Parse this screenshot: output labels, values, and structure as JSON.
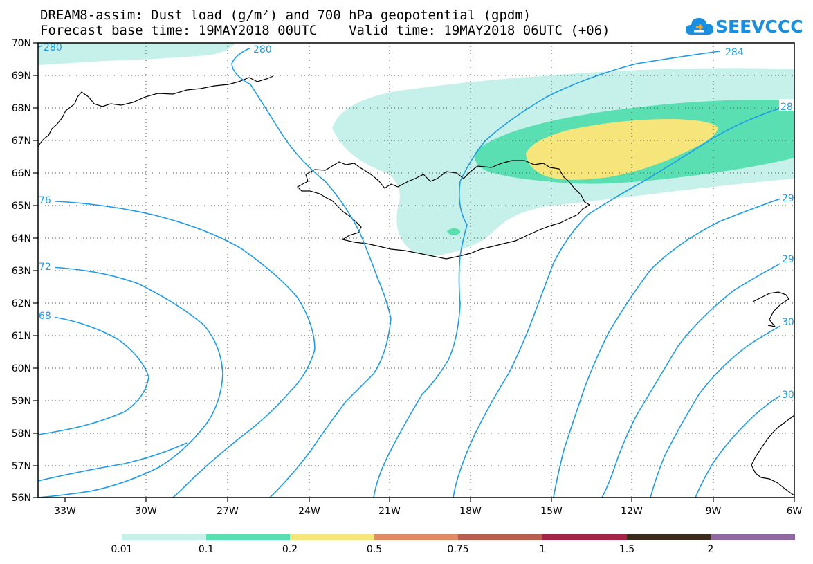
{
  "header": {
    "title_line1": "DREAM8-assim: Dust load (g/m²) and 700 hPa geopotential (gpdm)",
    "title_line2": "Forecast base time: 19MAY2018 00UTC    Valid time: 19MAY2018 06UTC (+06)",
    "logo_text": "SEEVCCC",
    "logo_icon": "cloud-icon"
  },
  "map": {
    "lat_labels": [
      "70N",
      "69N",
      "68N",
      "67N",
      "66N",
      "65N",
      "64N",
      "63N",
      "62N",
      "61N",
      "60N",
      "59N",
      "58N",
      "57N",
      "56N"
    ],
    "lon_labels": [
      "33W",
      "30W",
      "27W",
      "24W",
      "21W",
      "18W",
      "15W",
      "12W",
      "9W",
      "6W"
    ],
    "contour_labels": [
      "280",
      "280",
      "284",
      "28",
      "76",
      "72",
      "68",
      "29",
      "29",
      "30",
      "30"
    ],
    "contour_color": "#1e9be8",
    "coast_color": "#000000",
    "grid": "dotted"
  },
  "colorbar": {
    "labels": [
      "0.01",
      "0.1",
      "0.2",
      "0.5",
      "0.75",
      "1",
      "1.5",
      "2"
    ],
    "colors": [
      "#c6f1ea",
      "#5adfb2",
      "#f5e57a",
      "#dd8a65",
      "#b65f4f",
      "#a32447",
      "#3b2a1e",
      "#9068a0"
    ]
  }
}
